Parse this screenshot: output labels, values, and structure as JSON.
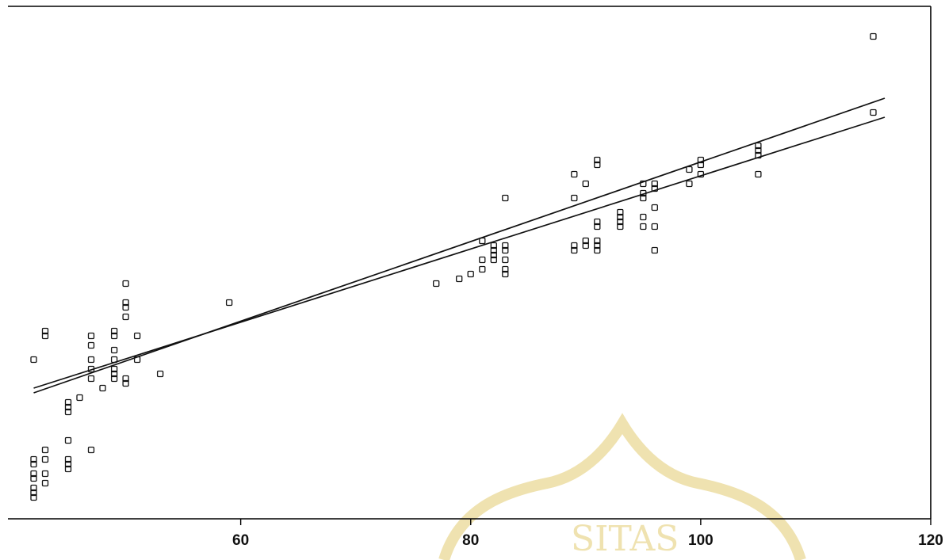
{
  "chart_data": {
    "type": "scatter",
    "xlim": [
      41,
      120
    ],
    "ylim": [
      0,
      100
    ],
    "xticks": [
      60,
      80,
      100,
      120
    ],
    "x_tick_labels": [
      "60",
      "80",
      "100",
      "120"
    ],
    "yticks": [],
    "grid": false,
    "legend": "none",
    "series": [
      {
        "kind": "points",
        "marker": "square-open",
        "points": [
          [
            42,
            31
          ],
          [
            42,
            10
          ],
          [
            42,
            9
          ],
          [
            42,
            7
          ],
          [
            42,
            6
          ],
          [
            42,
            4
          ],
          [
            42,
            3
          ],
          [
            42,
            2
          ],
          [
            43,
            5
          ],
          [
            43,
            7
          ],
          [
            43,
            10
          ],
          [
            43,
            12
          ],
          [
            43,
            36
          ],
          [
            43,
            37
          ],
          [
            45,
            22
          ],
          [
            45,
            21
          ],
          [
            45,
            20
          ],
          [
            45,
            14
          ],
          [
            45,
            10
          ],
          [
            45,
            9
          ],
          [
            45,
            8
          ],
          [
            46,
            23
          ],
          [
            47,
            12
          ],
          [
            47,
            27
          ],
          [
            47,
            29
          ],
          [
            47,
            31
          ],
          [
            47,
            34
          ],
          [
            47,
            36
          ],
          [
            48,
            25
          ],
          [
            49,
            27
          ],
          [
            49,
            28
          ],
          [
            49,
            29
          ],
          [
            49,
            31
          ],
          [
            49,
            33
          ],
          [
            49,
            36
          ],
          [
            49,
            37
          ],
          [
            50,
            26
          ],
          [
            50,
            27
          ],
          [
            50,
            40
          ],
          [
            50,
            42
          ],
          [
            50,
            43
          ],
          [
            50,
            47
          ],
          [
            51,
            31
          ],
          [
            51,
            36
          ],
          [
            53,
            28
          ],
          [
            59,
            43
          ],
          [
            77,
            47
          ],
          [
            79,
            48
          ],
          [
            80,
            49
          ],
          [
            81,
            50
          ],
          [
            81,
            52
          ],
          [
            81,
            56
          ],
          [
            82,
            52
          ],
          [
            82,
            53
          ],
          [
            82,
            54
          ],
          [
            82,
            55
          ],
          [
            83,
            49
          ],
          [
            83,
            50
          ],
          [
            83,
            52
          ],
          [
            83,
            54
          ],
          [
            83,
            55
          ],
          [
            83,
            65
          ],
          [
            89,
            54
          ],
          [
            89,
            55
          ],
          [
            89,
            65
          ],
          [
            89,
            70
          ],
          [
            90,
            55
          ],
          [
            90,
            56
          ],
          [
            90,
            68
          ],
          [
            91,
            54
          ],
          [
            91,
            55
          ],
          [
            91,
            56
          ],
          [
            91,
            59
          ],
          [
            91,
            60
          ],
          [
            91,
            72
          ],
          [
            91,
            73
          ],
          [
            93,
            59
          ],
          [
            93,
            60
          ],
          [
            93,
            61
          ],
          [
            93,
            62
          ],
          [
            95,
            59
          ],
          [
            95,
            61
          ],
          [
            95,
            65
          ],
          [
            95,
            66
          ],
          [
            95,
            68
          ],
          [
            96,
            54
          ],
          [
            96,
            59
          ],
          [
            96,
            63
          ],
          [
            96,
            67
          ],
          [
            96,
            68
          ],
          [
            99,
            68
          ],
          [
            99,
            71
          ],
          [
            100,
            70
          ],
          [
            100,
            72
          ],
          [
            100,
            73
          ],
          [
            105,
            70
          ],
          [
            105,
            74
          ],
          [
            105,
            75
          ],
          [
            105,
            76
          ],
          [
            115,
            83
          ],
          [
            115,
            99
          ]
        ]
      },
      {
        "kind": "line",
        "points": [
          [
            42,
            24
          ],
          [
            116,
            86
          ]
        ]
      },
      {
        "kind": "line",
        "points": [
          [
            42,
            25
          ],
          [
            116,
            82
          ]
        ]
      }
    ]
  },
  "watermark": {
    "text": "SITAS"
  }
}
